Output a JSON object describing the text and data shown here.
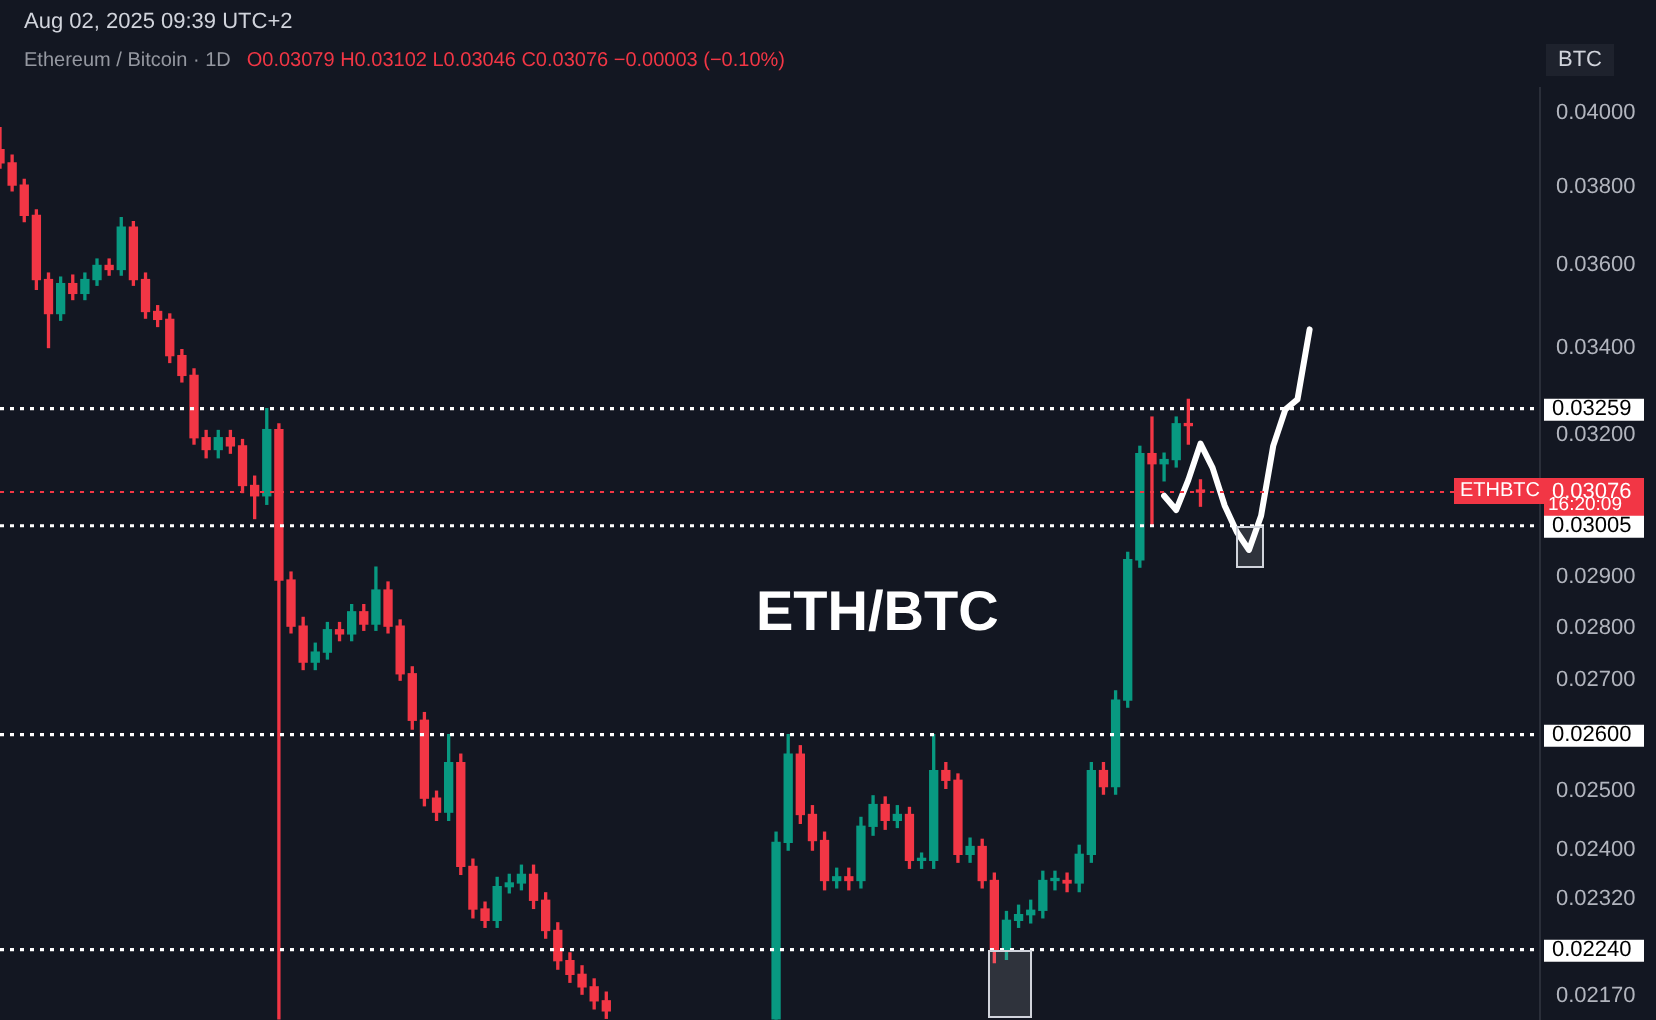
{
  "chart_data": {
    "type": "candlestick",
    "title": "Ethereum / Bitcoin · 1D",
    "subtitle": "O0.03079 H0.03102 L0.03046 C0.03076 −0.00003 (−0.10%)",
    "annotations": [
      "Aug 02, 2025 09:39 UTC+2",
      "ETH/BTC",
      "BTC",
      "ETHBTC",
      "16:20:09"
    ],
    "categories": [
      null,
      null,
      null,
      null,
      null,
      null,
      null,
      null,
      null,
      null,
      null,
      null,
      null,
      null,
      null,
      null,
      null,
      null,
      null,
      null,
      null,
      null,
      null,
      null,
      null,
      null,
      null,
      null,
      null,
      null,
      null,
      null,
      null,
      null,
      null,
      null,
      null,
      null,
      null,
      null,
      null,
      null,
      null,
      null,
      null,
      null,
      null,
      null,
      null,
      null,
      null,
      null,
      null,
      null,
      null,
      null,
      null,
      null,
      null,
      null,
      null,
      null,
      null,
      null,
      null,
      null,
      null,
      null,
      null,
      null,
      null,
      null,
      null,
      null,
      null,
      null,
      null,
      null,
      null,
      null,
      null,
      null,
      null,
      null,
      null,
      null,
      null,
      null,
      null,
      null,
      null,
      null,
      null,
      null,
      null,
      null,
      null,
      null,
      null,
      null,
      null,
      null,
      null,
      null,
      null,
      null,
      null,
      null,
      null,
      null,
      null,
      null,
      null,
      null,
      null,
      null,
      null,
      null,
      null,
      null,
      null,
      null,
      null,
      null,
      null,
      null,
      null,
      null
    ],
    "ohlc": [
      [
        0.039,
        0.0396,
        0.0385,
        0.03864
      ],
      [
        0.03864,
        0.03885,
        0.0379,
        0.03805
      ],
      [
        0.03805,
        0.0382,
        0.0371,
        0.03726
      ],
      [
        0.03726,
        0.0374,
        0.0354,
        0.03564
      ],
      [
        0.03564,
        0.0358,
        0.034,
        0.03481
      ],
      [
        0.03481,
        0.0357,
        0.03465,
        0.03554
      ],
      [
        0.03554,
        0.03575,
        0.03515,
        0.0353
      ],
      [
        0.0353,
        0.0358,
        0.03515,
        0.03564
      ],
      [
        0.03564,
        0.03615,
        0.0355,
        0.03599
      ],
      [
        0.03599,
        0.03615,
        0.03575,
        0.03589
      ],
      [
        0.03589,
        0.0372,
        0.03575,
        0.03696
      ],
      [
        0.03696,
        0.0371,
        0.0355,
        0.03564
      ],
      [
        0.03564,
        0.0358,
        0.0347,
        0.03486
      ],
      [
        0.03486,
        0.035,
        0.0345,
        0.03467
      ],
      [
        0.03467,
        0.0348,
        0.03365,
        0.03381
      ],
      [
        0.03381,
        0.03395,
        0.0332,
        0.03335
      ],
      [
        0.03335,
        0.0335,
        0.0318,
        0.03194
      ],
      [
        0.03194,
        0.0321,
        0.0315,
        0.03168
      ],
      [
        0.03168,
        0.0321,
        0.0315,
        0.03194
      ],
      [
        0.03194,
        0.0321,
        0.0316,
        0.03176
      ],
      [
        0.03176,
        0.0319,
        0.03075,
        0.0309
      ],
      [
        0.0309,
        0.0311,
        0.0302,
        0.03068
      ],
      [
        0.03068,
        0.03259,
        0.0305,
        0.03212
      ],
      [
        0.03212,
        0.03225,
        0.02135,
        0.02894
      ],
      [
        0.02894,
        0.0291,
        0.0279,
        0.02803
      ],
      [
        0.02803,
        0.0282,
        0.0272,
        0.02734
      ],
      [
        0.02734,
        0.0277,
        0.0272,
        0.02753
      ],
      [
        0.02753,
        0.0281,
        0.0274,
        0.02796
      ],
      [
        0.02796,
        0.0281,
        0.02775,
        0.02788
      ],
      [
        0.02788,
        0.02845,
        0.02775,
        0.02831
      ],
      [
        0.02831,
        0.02845,
        0.02795,
        0.02807
      ],
      [
        0.02807,
        0.0292,
        0.02795,
        0.02874
      ],
      [
        0.02874,
        0.0289,
        0.0279,
        0.02803
      ],
      [
        0.02803,
        0.02815,
        0.027,
        0.02712
      ],
      [
        0.02712,
        0.02725,
        0.0261,
        0.02626
      ],
      [
        0.02626,
        0.0264,
        0.02475,
        0.02488
      ],
      [
        0.02488,
        0.025,
        0.0245,
        0.02464
      ],
      [
        0.02464,
        0.026,
        0.0245,
        0.0255
      ],
      [
        0.0255,
        0.02565,
        0.0236,
        0.02373
      ],
      [
        0.02373,
        0.02385,
        0.0229,
        0.02304
      ],
      [
        0.02304,
        0.02315,
        0.02275,
        0.02286
      ],
      [
        0.02286,
        0.02355,
        0.02275,
        0.0234
      ],
      [
        0.0234,
        0.0236,
        0.0233,
        0.02346
      ],
      [
        0.02346,
        0.02375,
        0.02335,
        0.0236
      ],
      [
        0.0236,
        0.02375,
        0.02305,
        0.02318
      ],
      [
        0.02318,
        0.0233,
        0.02258,
        0.0227
      ],
      [
        0.0227,
        0.02282,
        0.0221,
        0.02223
      ],
      [
        0.02223,
        0.02235,
        0.0219,
        0.02202
      ],
      [
        0.02202,
        0.02215,
        0.02172,
        0.02183
      ],
      [
        0.02183,
        0.02195,
        0.0215,
        0.02162
      ],
      [
        0.02162,
        0.02175,
        0.02136,
        0.02147
      ],
      null,
      null,
      null,
      null,
      null,
      null,
      null,
      null,
      null,
      null,
      null,
      null,
      null,
      [
        0.02135,
        0.0243,
        0.02135,
        0.02413
      ],
      [
        0.02413,
        0.026,
        0.024,
        0.02565
      ],
      [
        0.02565,
        0.0258,
        0.02445,
        0.0246
      ],
      [
        0.0246,
        0.02475,
        0.024,
        0.02416
      ],
      [
        0.02416,
        0.0243,
        0.02335,
        0.0235
      ],
      [
        0.0235,
        0.0237,
        0.02338,
        0.02356
      ],
      [
        0.02356,
        0.0237,
        0.02335,
        0.0235
      ],
      [
        0.0235,
        0.02455,
        0.02338,
        0.0244
      ],
      [
        0.0244,
        0.02492,
        0.02425,
        0.02477
      ],
      [
        0.02477,
        0.0249,
        0.02435,
        0.0245
      ],
      [
        0.0245,
        0.02475,
        0.02438,
        0.0246
      ],
      [
        0.0246,
        0.02472,
        0.0237,
        0.02383
      ],
      [
        0.02383,
        0.02395,
        0.0237,
        0.02383
      ],
      [
        0.02383,
        0.026,
        0.0237,
        0.02536
      ],
      [
        0.02536,
        0.0255,
        0.02505,
        0.02519
      ],
      [
        0.02519,
        0.0253,
        0.0238,
        0.02393
      ],
      [
        0.02393,
        0.0242,
        0.0238,
        0.02406
      ],
      [
        0.02406,
        0.02418,
        0.02338,
        0.0235
      ],
      [
        0.0235,
        0.02362,
        0.0222,
        0.02238
      ],
      [
        0.02238,
        0.023,
        0.02225,
        0.02286
      ],
      [
        0.02286,
        0.0231,
        0.02275,
        0.02295
      ],
      [
        0.02295,
        0.02318,
        0.02282,
        0.02302
      ],
      [
        0.02302,
        0.02365,
        0.0229,
        0.0235
      ],
      [
        0.0235,
        0.02365,
        0.02335,
        0.0235
      ],
      [
        0.0235,
        0.02362,
        0.02332,
        0.02346
      ],
      [
        0.02346,
        0.02408,
        0.02332,
        0.02393
      ],
      [
        0.02393,
        0.0255,
        0.0238,
        0.02536
      ],
      [
        0.02536,
        0.0255,
        0.02495,
        0.02508
      ],
      [
        0.02508,
        0.0268,
        0.02495,
        0.02663
      ],
      [
        0.02663,
        0.0295,
        0.0265,
        0.02935
      ],
      [
        0.02935,
        0.03175,
        0.0292,
        0.03159
      ],
      [
        0.03159,
        0.0324,
        0.03005,
        0.03137
      ],
      [
        0.03137,
        0.0316,
        0.031,
        0.03146
      ],
      [
        0.03146,
        0.0324,
        0.0313,
        0.03225
      ],
      [
        0.03225,
        0.0328,
        0.0318,
        0.03221
      ],
      [
        0.03079,
        0.03102,
        0.03046,
        0.03076
      ],
      null,
      null,
      null,
      null,
      null,
      null,
      null,
      null,
      null,
      null,
      null,
      null,
      null,
      null,
      null,
      null,
      null,
      null,
      null,
      null,
      null,
      null,
      null,
      null,
      null,
      null,
      null,
      null
    ],
    "series": [
      {
        "type": "line",
        "color": "#ffffff",
        "values": [
          null,
          null,
          null,
          null,
          null,
          null,
          null,
          null,
          null,
          null,
          null,
          null,
          null,
          null,
          null,
          null,
          null,
          null,
          null,
          null,
          null,
          null,
          null,
          null,
          null,
          null,
          null,
          null,
          null,
          null,
          null,
          null,
          null,
          null,
          null,
          null,
          null,
          null,
          null,
          null,
          null,
          null,
          null,
          null,
          null,
          null,
          null,
          null,
          null,
          null,
          null,
          null,
          null,
          null,
          null,
          null,
          null,
          null,
          null,
          null,
          null,
          null,
          null,
          null,
          null,
          null,
          null,
          null,
          null,
          null,
          null,
          null,
          null,
          null,
          null,
          null,
          null,
          null,
          null,
          null,
          null,
          null,
          null,
          null,
          null,
          null,
          null,
          null,
          null,
          null,
          null,
          null,
          null,
          null,
          null,
          null,
          0.03068,
          0.03038,
          0.03102,
          0.03181,
          0.03128,
          0.03047,
          0.02992,
          0.02955,
          0.03026,
          0.03176,
          0.03257,
          0.0328,
          0.03443,
          null,
          null,
          null,
          null,
          null,
          null,
          null,
          null,
          null,
          null,
          null,
          null,
          null,
          null,
          null,
          null,
          null,
          null,
          null
        ]
      }
    ],
    "log": true,
    "ylim": [
      0.0213,
      0.0407
    ],
    "yticks": [
      {
        "value": 0.04,
        "label": "0.04000"
      },
      {
        "value": 0.038,
        "label": "0.03800"
      },
      {
        "value": 0.036,
        "label": "0.03600"
      },
      {
        "value": 0.034,
        "label": "0.03400"
      },
      {
        "value": 0.032,
        "label": "0.03200"
      },
      {
        "value": 0.029,
        "label": "0.02900"
      },
      {
        "value": 0.028,
        "label": "0.02800"
      },
      {
        "value": 0.027,
        "label": "0.02700"
      },
      {
        "value": 0.025,
        "label": "0.02500"
      },
      {
        "value": 0.024,
        "label": "0.02400"
      },
      {
        "value": 0.0232,
        "label": "0.02320"
      },
      {
        "value": 0.0217,
        "label": "0.02170"
      }
    ],
    "ref_lines": [
      {
        "axis": "y",
        "value": 0.03259,
        "label": "0.03259",
        "color": "#ffffff",
        "line_style": "dotted"
      },
      {
        "axis": "y",
        "value": 0.03005,
        "label": "0.03005",
        "color": "#ffffff",
        "line_style": "dotted"
      },
      {
        "axis": "y",
        "value": 0.026,
        "label": "0.02600",
        "color": "#ffffff",
        "line_style": "dotted"
      },
      {
        "axis": "y",
        "value": 0.0224,
        "label": "0.02240",
        "color": "#ffffff",
        "line_style": "dotted"
      },
      {
        "axis": "y",
        "value": 0.03076,
        "label": "0.03076",
        "color": "#f23645",
        "line_style": "dotted"
      }
    ],
    "grid": false,
    "legend": false,
    "marker": "none",
    "tick_labels": "y"
  }
}
